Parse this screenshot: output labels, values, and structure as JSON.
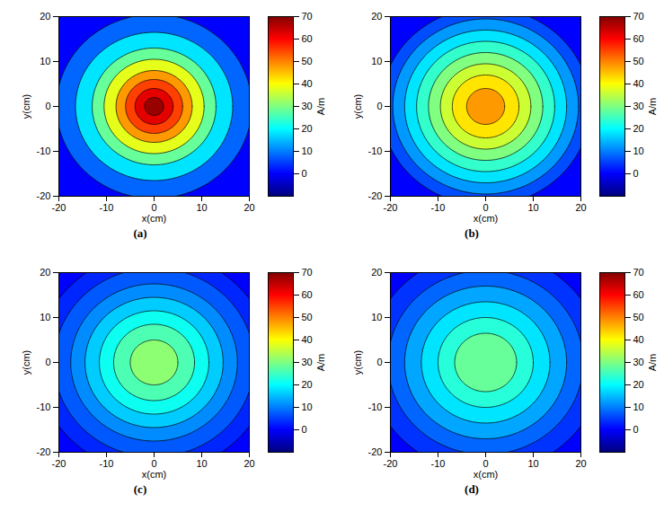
{
  "chart_data": [
    {
      "type": "contour",
      "title": "(a)",
      "x_label": "x(cm)",
      "y_label": "y(cm)",
      "xlim": [
        -20,
        20
      ],
      "ylim": [
        -20,
        20
      ],
      "xticks": [
        -20,
        -10,
        0,
        10,
        20
      ],
      "yticks": [
        -20,
        -10,
        0,
        10,
        20
      ],
      "colorbar": {
        "label": "A/m",
        "range": [
          -10,
          70
        ],
        "ticks": [
          0,
          10,
          20,
          30,
          40,
          50,
          60,
          70
        ]
      },
      "background": 0,
      "contours": [
        {
          "radius": 20.5,
          "value": 8
        },
        {
          "radius": 16.5,
          "value": 18
        },
        {
          "radius": 13,
          "value": 28
        },
        {
          "radius": 10.5,
          "value": 38
        },
        {
          "radius": 8,
          "value": 48
        },
        {
          "radius": 6,
          "value": 55
        },
        {
          "radius": 4,
          "value": 62
        },
        {
          "radius": 2,
          "value": 68
        }
      ]
    },
    {
      "type": "contour",
      "title": "(b)",
      "x_label": "x(cm)",
      "y_label": "y(cm)",
      "xlim": [
        -20,
        20
      ],
      "ylim": [
        -20,
        20
      ],
      "xticks": [
        -20,
        -10,
        0,
        10,
        20
      ],
      "yticks": [
        -20,
        -10,
        0,
        10,
        20
      ],
      "colorbar": {
        "label": "A/m",
        "range": [
          -10,
          70
        ],
        "ticks": [
          0,
          10,
          20,
          30,
          40,
          50,
          60,
          70
        ]
      },
      "background": 0,
      "contours": [
        {
          "radius": 22,
          "value": 6
        },
        {
          "radius": 19.5,
          "value": 12
        },
        {
          "radius": 17,
          "value": 18
        },
        {
          "radius": 14.5,
          "value": 24
        },
        {
          "radius": 12,
          "value": 30
        },
        {
          "radius": 9.5,
          "value": 36
        },
        {
          "radius": 7,
          "value": 42
        },
        {
          "radius": 4,
          "value": 48
        }
      ]
    },
    {
      "type": "contour",
      "title": "(c)",
      "x_label": "x(cm)",
      "y_label": "y(cm)",
      "xlim": [
        -20,
        20
      ],
      "ylim": [
        -20,
        20
      ],
      "xticks": [
        -20,
        -10,
        0,
        10,
        20
      ],
      "yticks": [
        -20,
        -10,
        0,
        10,
        20
      ],
      "colorbar": {
        "label": "A/m",
        "range": [
          -10,
          70
        ],
        "ticks": [
          0,
          10,
          20,
          30,
          40,
          50,
          60,
          70
        ]
      },
      "background": 0,
      "contours": [
        {
          "radius": 24.5,
          "value": 3
        },
        {
          "radius": 21,
          "value": 7
        },
        {
          "radius": 17.5,
          "value": 11
        },
        {
          "radius": 14.5,
          "value": 16
        },
        {
          "radius": 11.5,
          "value": 21
        },
        {
          "radius": 8.5,
          "value": 26
        },
        {
          "radius": 5,
          "value": 31
        }
      ]
    },
    {
      "type": "contour",
      "title": "(d)",
      "x_label": "x(cm)",
      "y_label": "y(cm)",
      "xlim": [
        -20,
        20
      ],
      "ylim": [
        -20,
        20
      ],
      "xticks": [
        -20,
        -10,
        0,
        10,
        20
      ],
      "yticks": [
        -20,
        -10,
        0,
        10,
        20
      ],
      "colorbar": {
        "label": "A/m",
        "range": [
          -10,
          70
        ],
        "ticks": [
          0,
          10,
          20,
          30,
          40,
          50,
          60,
          70
        ]
      },
      "background": 0,
      "contours": [
        {
          "radius": 24.5,
          "value": 4
        },
        {
          "radius": 20.5,
          "value": 8
        },
        {
          "radius": 17,
          "value": 13
        },
        {
          "radius": 13.5,
          "value": 18
        },
        {
          "radius": 10,
          "value": 23
        },
        {
          "radius": 6.5,
          "value": 28
        }
      ]
    }
  ]
}
